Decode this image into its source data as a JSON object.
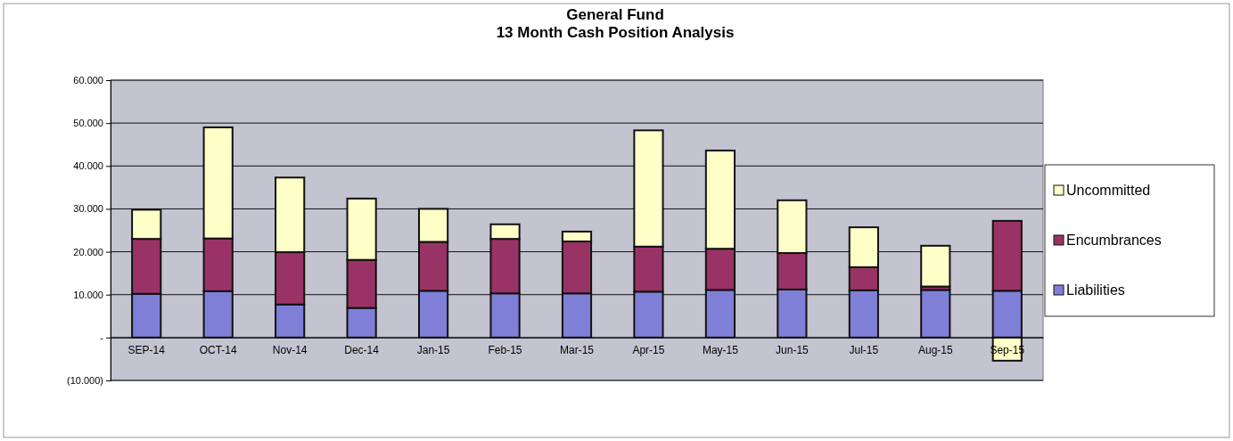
{
  "chart_data": {
    "type": "bar",
    "title": "General Fund",
    "subtitle": "13 Month Cash Position Analysis",
    "categories": [
      "SEP-14",
      "OCT-14",
      "Nov-14",
      "Dec-14",
      "Jan-15",
      "Feb-15",
      "Mar-15",
      "Apr-15",
      "May-15",
      "Jun-15",
      "Jul-15",
      "Aug-15",
      "Sep-15"
    ],
    "stacked": true,
    "series": [
      {
        "name": "Liabilities",
        "color": "#7f7fd8",
        "values": [
          10.2,
          10.8,
          7.7,
          6.9,
          10.9,
          10.3,
          10.3,
          10.7,
          11.1,
          11.2,
          11.0,
          11.1,
          10.9
        ]
      },
      {
        "name": "Encumbrances",
        "color": "#993366",
        "values": [
          12.8,
          12.3,
          12.2,
          11.2,
          11.4,
          12.7,
          12.1,
          10.5,
          9.6,
          8.5,
          5.4,
          0.8,
          16.3
        ]
      },
      {
        "name": "Uncommitted",
        "color": "#ffffc8",
        "values": [
          6.8,
          25.9,
          17.4,
          14.3,
          7.7,
          3.4,
          2.3,
          27.1,
          22.9,
          12.3,
          9.3,
          9.5,
          -5.4
        ]
      }
    ],
    "ylim": [
      -10,
      60
    ],
    "yticks": [
      {
        "value": -10,
        "label": "(10.000)"
      },
      {
        "value": 0,
        "label": "-"
      },
      {
        "value": 10,
        "label": "10.000"
      },
      {
        "value": 20,
        "label": "20.000"
      },
      {
        "value": 30,
        "label": "30.000"
      },
      {
        "value": 40,
        "label": "40.000"
      },
      {
        "value": 50,
        "label": "50.000"
      },
      {
        "value": 60,
        "label": "60.000"
      }
    ],
    "grid": "y",
    "legend": "right"
  }
}
